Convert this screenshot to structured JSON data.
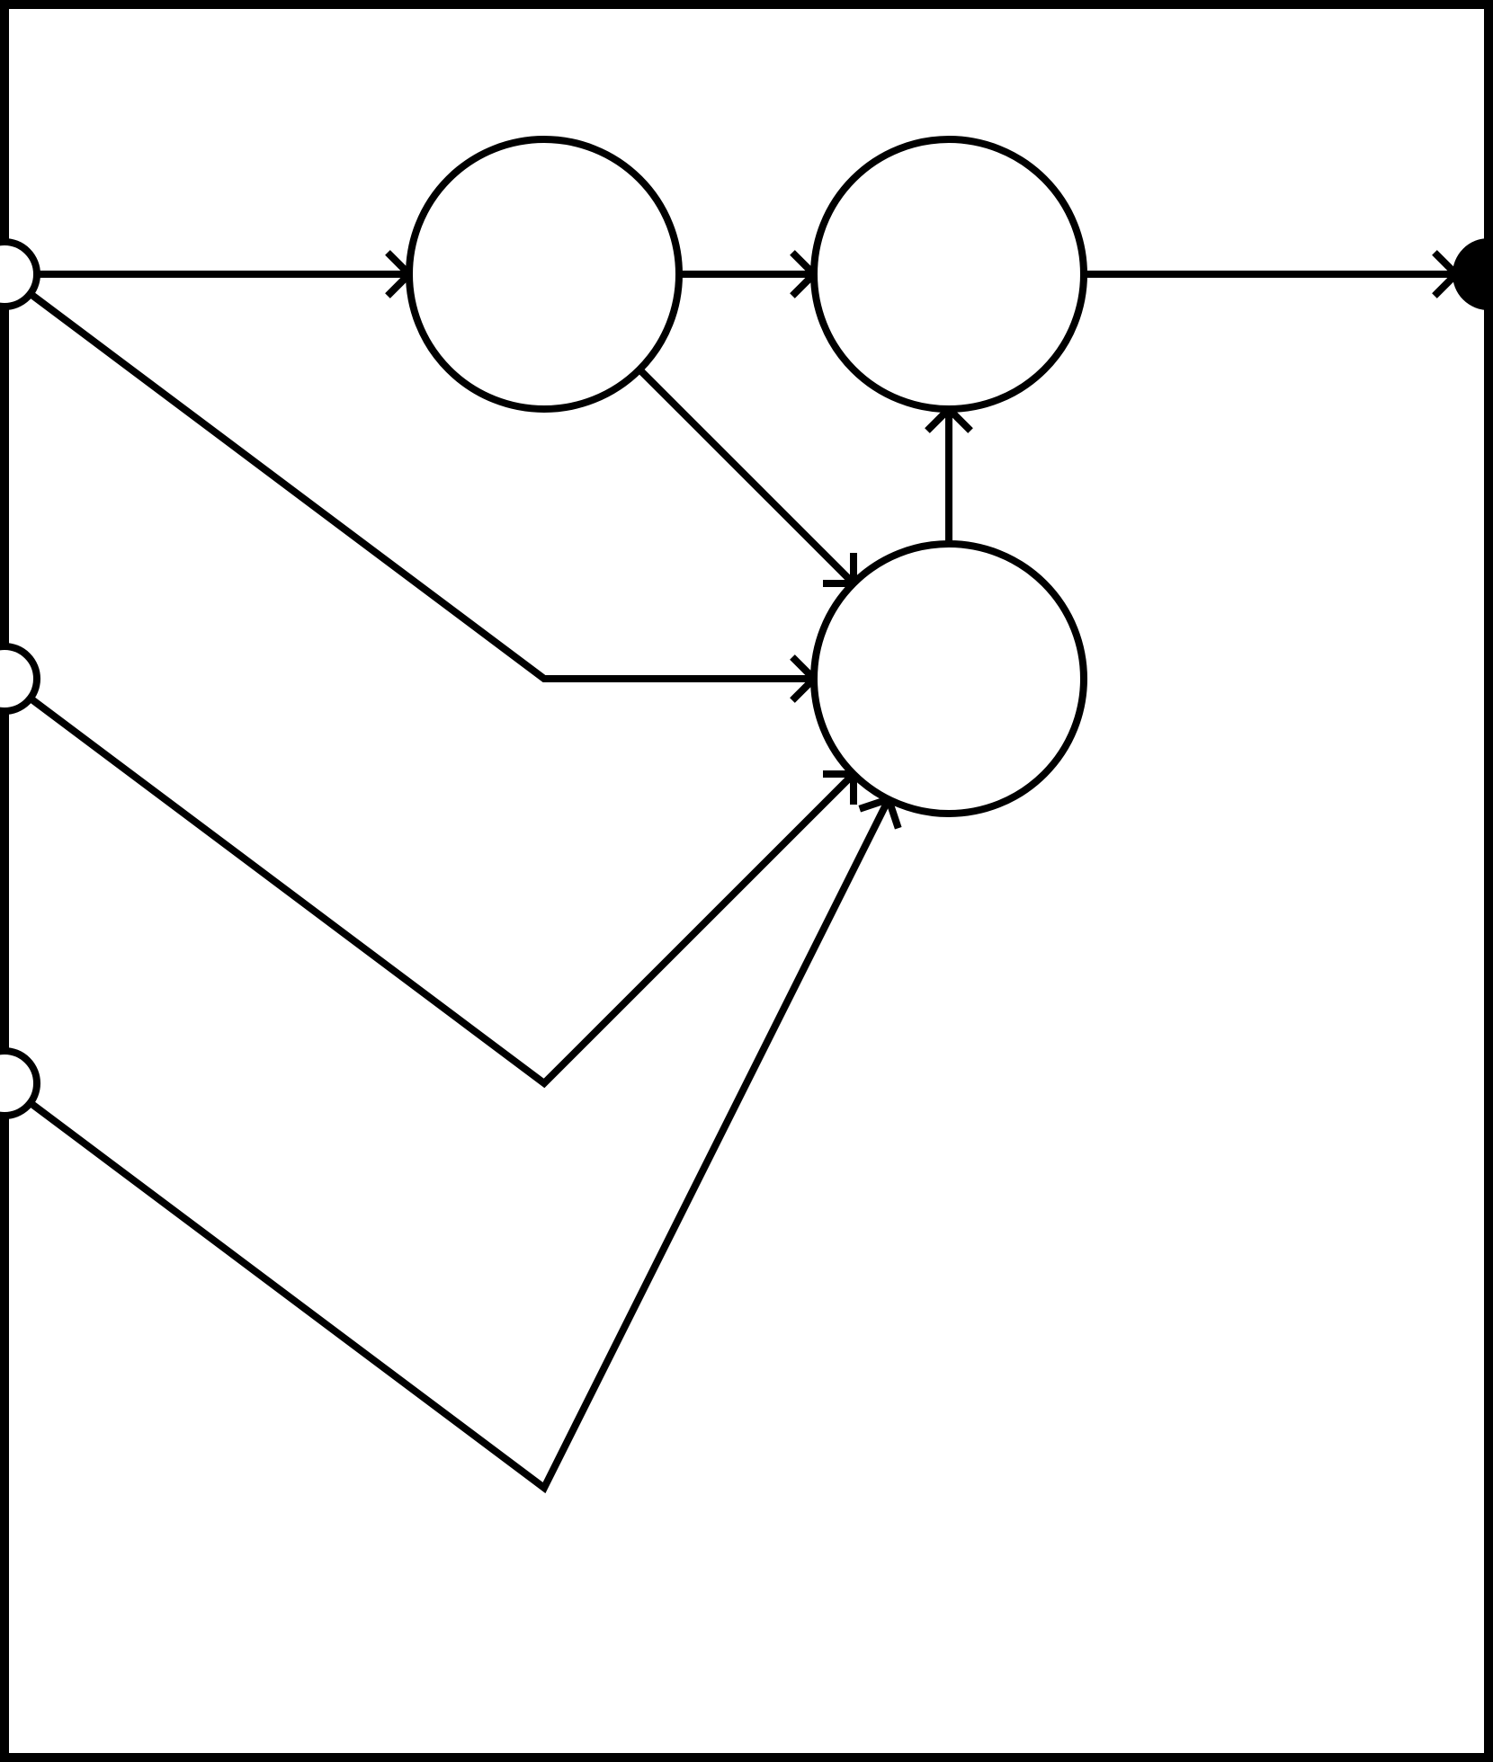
{
  "diagram": {
    "nodes": [
      {
        "id": "n1"
      },
      {
        "id": "n2"
      },
      {
        "id": "n3"
      }
    ],
    "ports": [
      {
        "id": "in1",
        "kind": "input",
        "fill": "#ffffff"
      },
      {
        "id": "in2",
        "kind": "input",
        "fill": "#ffffff"
      },
      {
        "id": "in3",
        "kind": "input",
        "fill": "#ffffff"
      },
      {
        "id": "out1",
        "kind": "output",
        "fill": "#000000"
      }
    ],
    "edges": [
      {
        "from": "in1",
        "to": "n1"
      },
      {
        "from": "n1",
        "to": "n2"
      },
      {
        "from": "n2",
        "to": "out1"
      },
      {
        "from": "n1",
        "to": "n3"
      },
      {
        "from": "n3",
        "to": "n2"
      },
      {
        "from": "in1",
        "to": "n3"
      },
      {
        "from": "in2",
        "to": "n3"
      },
      {
        "from": "in3",
        "to": "n3"
      }
    ]
  }
}
